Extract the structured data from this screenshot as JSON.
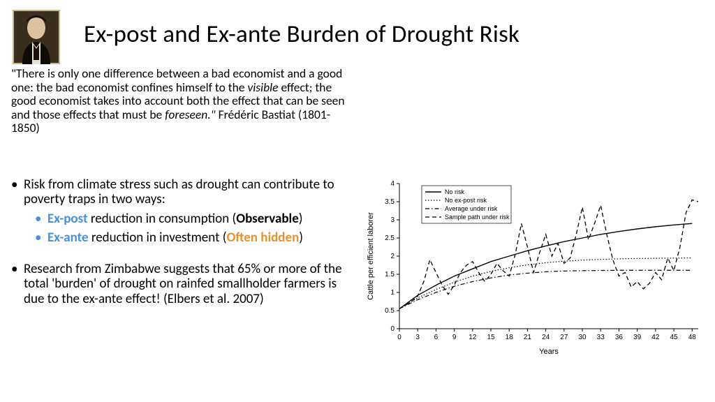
{
  "title": "Ex-post and Ex-ante Burden of Drought Risk",
  "quote": {
    "part1": "\"There is only one difference between a bad economist and a good one: the bad economist confines himself to the ",
    "visible": "visible",
    "part2": " effect; the good economist takes into account both the effect that can be seen and those effects that must be ",
    "foreseen": "foreseen.\"",
    "author": " Frédéric Bastiat (1801-1850)"
  },
  "bullets": {
    "main1": "Risk from climate stress such as drought can contribute to poverty traps in two ways:",
    "sub1_expost": "Ex-post",
    "sub1_rest": " reduction in consumption (",
    "sub1_obs": "Observable",
    "sub1_close": ")",
    "sub2_exante": "Ex-ante",
    "sub2_rest": " reduction in investment (",
    "sub2_hidden": "Often hidden",
    "sub2_close": ")",
    "main2_a": "Research from Zimbabwe suggests that 65% or more of the total 'burden' of drought on rainfed smallholder farmers is due to the ",
    "main2_b": "ex-ante",
    "main2_c": " effect! (Elbers et al. 2007)"
  },
  "chart": {
    "ylabel": "Cattle per efficient laborer",
    "xlabel": "Years",
    "xlim": [
      0,
      49
    ],
    "ylim": [
      0,
      4
    ],
    "xticks": [
      0,
      3,
      6,
      9,
      12,
      15,
      18,
      21,
      24,
      27,
      30,
      33,
      36,
      39,
      42,
      45,
      48
    ],
    "yticks": [
      0,
      0.5,
      1,
      1.5,
      2,
      2.5,
      3,
      3.5,
      4
    ],
    "legend": [
      "No risk",
      "No ex-post risk",
      "Average under risk",
      "Sample path under risk"
    ],
    "colors": {
      "axis": "#000000",
      "bg": "#ffffff",
      "text": "#000000"
    },
    "series": {
      "no_risk": {
        "style": "solid",
        "width": 1.4,
        "color": "#000000",
        "pts": [
          [
            0,
            0.55
          ],
          [
            3,
            0.92
          ],
          [
            6,
            1.2
          ],
          [
            9,
            1.45
          ],
          [
            12,
            1.65
          ],
          [
            15,
            1.85
          ],
          [
            18,
            2.0
          ],
          [
            21,
            2.15
          ],
          [
            24,
            2.28
          ],
          [
            27,
            2.4
          ],
          [
            30,
            2.5
          ],
          [
            33,
            2.6
          ],
          [
            36,
            2.68
          ],
          [
            39,
            2.75
          ],
          [
            42,
            2.81
          ],
          [
            45,
            2.86
          ],
          [
            48,
            2.9
          ]
        ]
      },
      "no_expost": {
        "style": "dotted",
        "width": 1.2,
        "color": "#000000",
        "pts": [
          [
            0,
            0.55
          ],
          [
            3,
            0.85
          ],
          [
            6,
            1.08
          ],
          [
            9,
            1.28
          ],
          [
            12,
            1.45
          ],
          [
            15,
            1.58
          ],
          [
            18,
            1.68
          ],
          [
            21,
            1.76
          ],
          [
            24,
            1.82
          ],
          [
            27,
            1.86
          ],
          [
            30,
            1.89
          ],
          [
            33,
            1.91
          ],
          [
            36,
            1.925
          ],
          [
            39,
            1.935
          ],
          [
            42,
            1.94
          ],
          [
            45,
            1.945
          ],
          [
            48,
            1.95
          ]
        ]
      },
      "avg_under": {
        "style": "dashdot",
        "width": 1.2,
        "color": "#000000",
        "pts": [
          [
            0,
            0.55
          ],
          [
            3,
            0.8
          ],
          [
            6,
            1.0
          ],
          [
            9,
            1.17
          ],
          [
            12,
            1.3
          ],
          [
            15,
            1.4
          ],
          [
            18,
            1.48
          ],
          [
            21,
            1.53
          ],
          [
            24,
            1.57
          ],
          [
            27,
            1.59
          ],
          [
            30,
            1.6
          ],
          [
            33,
            1.605
          ],
          [
            36,
            1.61
          ],
          [
            39,
            1.61
          ],
          [
            42,
            1.61
          ],
          [
            45,
            1.61
          ],
          [
            48,
            1.61
          ]
        ]
      },
      "sample_path": {
        "style": "dashed",
        "width": 1.3,
        "color": "#000000",
        "pts": [
          [
            0,
            0.55
          ],
          [
            1,
            0.65
          ],
          [
            2,
            0.75
          ],
          [
            3,
            0.9
          ],
          [
            4,
            1.3
          ],
          [
            5,
            1.9
          ],
          [
            6,
            1.55
          ],
          [
            7,
            1.2
          ],
          [
            8,
            0.95
          ],
          [
            9,
            1.2
          ],
          [
            10,
            1.55
          ],
          [
            11,
            1.75
          ],
          [
            12,
            1.85
          ],
          [
            13,
            1.55
          ],
          [
            14,
            1.3
          ],
          [
            15,
            1.5
          ],
          [
            16,
            1.8
          ],
          [
            17,
            1.6
          ],
          [
            18,
            1.45
          ],
          [
            19,
            2.05
          ],
          [
            20,
            2.9
          ],
          [
            21,
            2.25
          ],
          [
            22,
            1.55
          ],
          [
            23,
            2.1
          ],
          [
            24,
            2.6
          ],
          [
            25,
            2.0
          ],
          [
            26,
            2.35
          ],
          [
            27,
            1.8
          ],
          [
            28,
            1.95
          ],
          [
            29,
            2.6
          ],
          [
            30,
            3.35
          ],
          [
            31,
            2.45
          ],
          [
            32,
            2.9
          ],
          [
            33,
            3.4
          ],
          [
            34,
            2.6
          ],
          [
            35,
            1.9
          ],
          [
            36,
            1.45
          ],
          [
            37,
            1.55
          ],
          [
            38,
            1.15
          ],
          [
            39,
            1.3
          ],
          [
            40,
            1.1
          ],
          [
            41,
            1.25
          ],
          [
            42,
            1.55
          ],
          [
            43,
            1.35
          ],
          [
            44,
            1.95
          ],
          [
            45,
            1.6
          ],
          [
            46,
            2.25
          ],
          [
            47,
            3.2
          ],
          [
            48,
            3.55
          ],
          [
            49,
            3.5
          ]
        ]
      }
    },
    "fonts": {
      "tick": 10,
      "label": 11,
      "legend": 9
    }
  }
}
